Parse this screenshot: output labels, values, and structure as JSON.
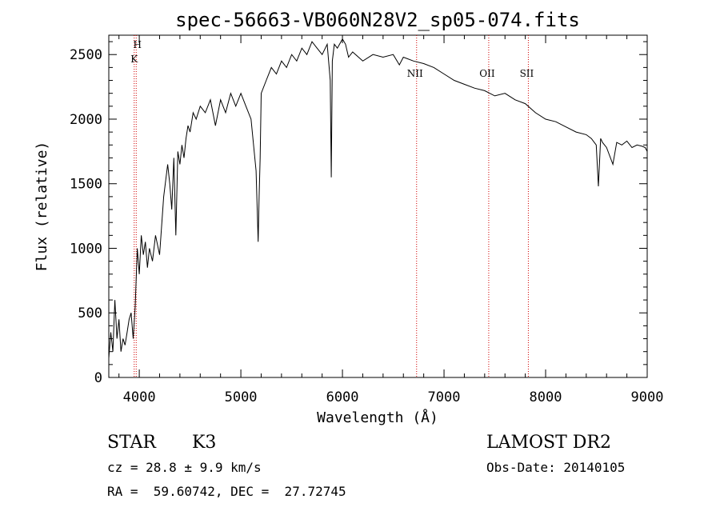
{
  "chart_data": {
    "type": "line",
    "title": "spec-56663-VB060N28V2_sp05-074.fits",
    "xlabel": "Wavelength (Å)",
    "ylabel": "Flux (relative)",
    "xlim": [
      3700,
      9000
    ],
    "ylim": [
      0,
      2650
    ],
    "xticks": [
      4000,
      5000,
      6000,
      7000,
      8000,
      9000
    ],
    "yticks": [
      0,
      500,
      1000,
      1500,
      2000,
      2500
    ],
    "grid": false,
    "line_marks": [
      {
        "label_top": "H",
        "label_bottom": "K",
        "wavelength": 3950
      },
      {
        "label_top": "",
        "label_bottom": "",
        "wavelength": 3970
      },
      {
        "label_top": "NII",
        "label_bottom": "",
        "wavelength": 6730
      },
      {
        "label_top": "OII",
        "label_bottom": "",
        "wavelength": 7440
      },
      {
        "label_top": "SII",
        "label_bottom": "",
        "wavelength": 7830
      }
    ],
    "series": [
      {
        "x": [
          3700,
          3720,
          3740,
          3760,
          3780,
          3800,
          3820,
          3840,
          3860,
          3880,
          3900,
          3920,
          3940,
          3960,
          3980,
          4000,
          4020,
          4040,
          4060,
          4080,
          4100,
          4130,
          4160,
          4200,
          4240,
          4280,
          4300,
          4320,
          4340,
          4360,
          4380,
          4400,
          4420,
          4440,
          4460,
          4480,
          4500,
          4530,
          4560,
          4600,
          4650,
          4700,
          4750,
          4800,
          4850,
          4900,
          4950,
          5000,
          5050,
          5100,
          5150,
          5170,
          5180,
          5190,
          5200,
          5250,
          5300,
          5350,
          5400,
          5450,
          5500,
          5550,
          5600,
          5650,
          5700,
          5750,
          5800,
          5850,
          5880,
          5890,
          5900,
          5920,
          5950,
          6000,
          6030,
          6060,
          6100,
          6200,
          6300,
          6400,
          6500,
          6560,
          6600,
          6700,
          6800,
          6900,
          7000,
          7100,
          7200,
          7300,
          7400,
          7500,
          7600,
          7700,
          7800,
          7900,
          8000,
          8100,
          8200,
          8300,
          8400,
          8450,
          8498,
          8520,
          8542,
          8560,
          8600,
          8662,
          8700,
          8750,
          8800,
          8850,
          8900,
          8950,
          8980,
          9000
        ],
        "y": [
          150,
          350,
          200,
          600,
          300,
          450,
          200,
          300,
          250,
          350,
          450,
          500,
          300,
          550,
          1000,
          800,
          1100,
          950,
          1050,
          850,
          1000,
          900,
          1100,
          950,
          1400,
          1650,
          1500,
          1300,
          1700,
          1100,
          1750,
          1650,
          1800,
          1700,
          1850,
          1950,
          1900,
          2050,
          2000,
          2100,
          2050,
          2150,
          1950,
          2150,
          2050,
          2200,
          2100,
          2200,
          2100,
          2000,
          1600,
          1050,
          1400,
          1700,
          2200,
          2300,
          2400,
          2350,
          2450,
          2400,
          2500,
          2450,
          2550,
          2500,
          2600,
          2550,
          2500,
          2580,
          2300,
          1550,
          2450,
          2580,
          2550,
          2620,
          2580,
          2480,
          2520,
          2450,
          2500,
          2480,
          2500,
          2420,
          2480,
          2450,
          2430,
          2400,
          2350,
          2300,
          2270,
          2240,
          2220,
          2180,
          2200,
          2150,
          2120,
          2050,
          2000,
          1980,
          1940,
          1900,
          1880,
          1850,
          1800,
          1480,
          1850,
          1820,
          1780,
          1650,
          1820,
          1800,
          1830,
          1780,
          1800,
          1790,
          1780,
          1750
        ]
      }
    ],
    "footer": {
      "object_type": "STAR",
      "subclass": "K3",
      "survey": "LAMOST DR2",
      "redshift_line": "cz = 28.8 ± 9.9 km/s",
      "obs_date": "Obs-Date: 20140105",
      "coords": "RA =  59.60742, DEC =  27.72745"
    }
  }
}
